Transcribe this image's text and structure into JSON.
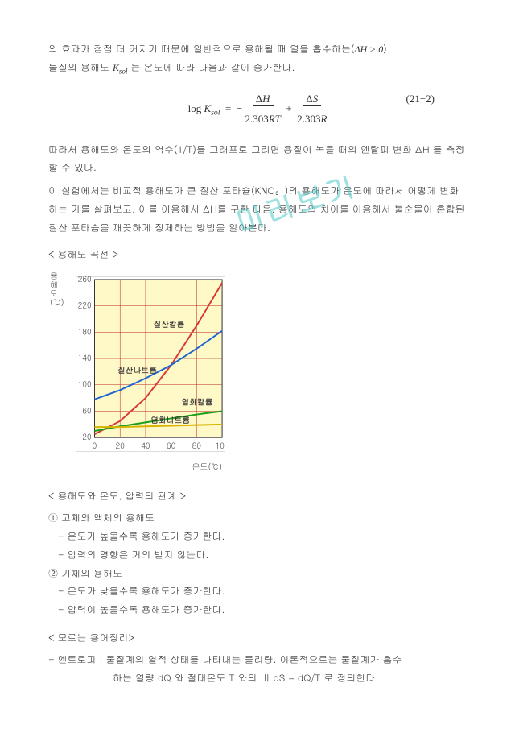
{
  "intro": {
    "line1_a": "의 효과가 점점 더 커지기 때문에 일반적으로 용해될 때 열을 흡수하는(",
    "line1_b": "ΔH > 0",
    "line1_c": ")",
    "line2_a": "물질의 용해도 ",
    "line2_b": "K",
    "line2_sub": "sol",
    "line2_c": " 는 온도에 따라 다음과 같이 증가한다."
  },
  "formula": {
    "text": "log Ksol = − ΔH / (2.303RT) + ΔS / (2.303R)",
    "eqnum": "(21−2)"
  },
  "mid": {
    "p1": "따라서 용해도와 온도의 역수(1/T)를 그래프로 그리면 용질이 녹을 때의 엔탈피 변화 ΔH 를 측정할 수 있다.",
    "p2": "이 실험에서는 비교적 용해도가 큰 질산 포타슘(KNO₃)의 용해도가 온도에 따라서 어떻게 변화하는 가를 살펴보고, 이를 이용해서 ΔH를 구한 다음, 용해도의 차이를 이용해서 불순물이 혼합된 질산 포타슘을 깨끗하게 정제하는 방법을 알아본다."
  },
  "watermark": "미리보기",
  "chart_title": "< 용해도 곡선 >",
  "chart": {
    "ylabel": "용해도(℃)",
    "xlabel": "온도(℃)",
    "yticks": [
      20,
      60,
      100,
      140,
      180,
      220,
      260
    ],
    "xticks": [
      0,
      20,
      40,
      60,
      80,
      100
    ],
    "ylim": [
      20,
      260
    ],
    "xlim": [
      0,
      100
    ],
    "background_fill": "#fff9c8",
    "grid_color": "#b82020",
    "axis_color": "#333333",
    "plot_bg": "#ffffff",
    "tick_fontsize": 10,
    "series": [
      {
        "name": "질산칼륨",
        "color": "#d43a3a",
        "label_xy": [
          46,
          188
        ],
        "points": [
          [
            0,
            25
          ],
          [
            20,
            45
          ],
          [
            40,
            80
          ],
          [
            60,
            130
          ],
          [
            80,
            190
          ],
          [
            100,
            255
          ]
        ]
      },
      {
        "name": "질산나트륨",
        "color": "#1e66d0",
        "label_xy": [
          18,
          118
        ],
        "points": [
          [
            0,
            78
          ],
          [
            20,
            92
          ],
          [
            40,
            110
          ],
          [
            60,
            130
          ],
          [
            80,
            155
          ],
          [
            100,
            182
          ]
        ]
      },
      {
        "name": "염화칼륨",
        "color": "#18a018",
        "label_xy": [
          68,
          70
        ],
        "points": [
          [
            0,
            30
          ],
          [
            20,
            37
          ],
          [
            40,
            43
          ],
          [
            60,
            49
          ],
          [
            80,
            55
          ],
          [
            100,
            60
          ]
        ]
      },
      {
        "name": "염화나트륨",
        "color": "#d6b400",
        "label_xy": [
          44,
          42
        ],
        "points": [
          [
            0,
            36
          ],
          [
            20,
            36
          ],
          [
            40,
            37
          ],
          [
            60,
            38
          ],
          [
            80,
            39
          ],
          [
            100,
            40
          ]
        ]
      }
    ]
  },
  "rel_title": "< 용해도와 온도, 압력의  관계 >",
  "rel": {
    "h1": "① 고체와 액체의 용해도",
    "h1_a": "- 온도가 높을수록 용해도가 증가한다.",
    "h1_b": "- 압력의 영향은 거의 받지 않는다.",
    "h2": "② 기체의 용해도",
    "h2_a": "- 온도가 낮을수록 용해도가 증가한다.",
    "h2_b": "- 압력이 높을수록 용해도가 증가한다."
  },
  "terms_title": "< 모르는 용어정리>",
  "terms": {
    "entropy_a": "- 엔트로피 : 물질계의 열적 상태를 나타내는 물리량. 이론적으로는 물질계가 흡수",
    "entropy_b": "하는 열량 dQ 와 절대온도 T 와의 비 dS = dQ/T 로 정의한다."
  }
}
